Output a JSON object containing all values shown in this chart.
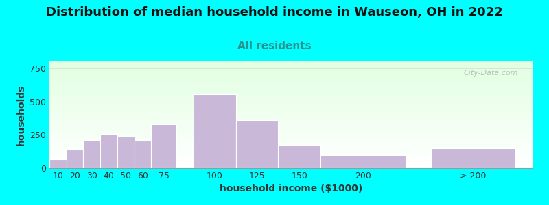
{
  "title": "Distribution of median household income in Wauseon, OH in 2022",
  "subtitle": "All residents",
  "xlabel": "household income ($1000)",
  "ylabel": "households",
  "background_color": "#00FFFF",
  "plot_bg_top": "#e8f5e8",
  "plot_bg_bottom": "#ffffff",
  "bar_color": "#c9b8d8",
  "bar_edge_color": "#ffffff",
  "yticks": [
    0,
    250,
    500,
    750
  ],
  "ylim": [
    0,
    800
  ],
  "categories": [
    "10",
    "20",
    "30",
    "40",
    "50",
    "60",
    "75",
    "100",
    "125",
    "150",
    "200",
    "> 200"
  ],
  "values": [
    65,
    140,
    210,
    255,
    235,
    205,
    330,
    555,
    360,
    175,
    100,
    150
  ],
  "bar_widths": [
    10,
    10,
    10,
    10,
    10,
    10,
    15,
    25,
    25,
    25,
    50,
    50
  ],
  "bar_lefts": [
    5,
    15,
    25,
    35,
    45,
    55,
    65,
    90,
    115,
    140,
    165,
    230
  ],
  "xlim": [
    5,
    290
  ],
  "watermark": "City-Data.com",
  "title_fontsize": 13,
  "subtitle_fontsize": 11,
  "axis_label_fontsize": 10,
  "tick_fontsize": 9,
  "subtitle_color": "#2a9090",
  "title_color": "#111111",
  "axis_label_color": "#333333",
  "tick_color": "#333333",
  "watermark_color": "#b0b8b0",
  "grid_color": "#dddddd"
}
